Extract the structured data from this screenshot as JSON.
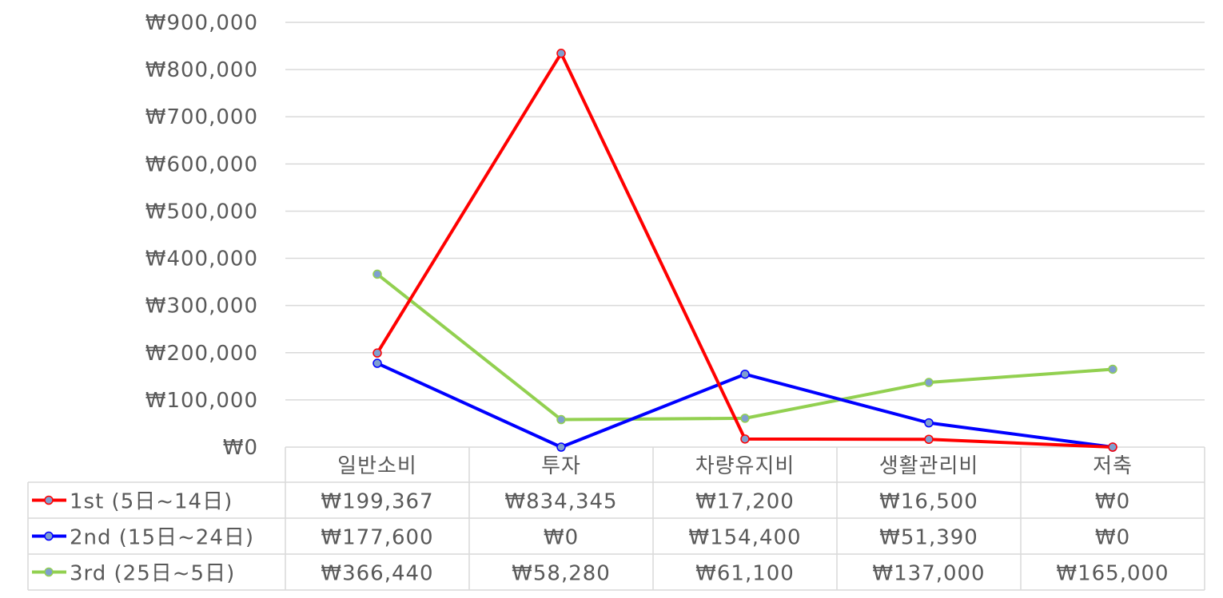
{
  "chart_data": {
    "type": "line",
    "categories": [
      "일반소비",
      "투자",
      "차량유지비",
      "생활관리비",
      "저축"
    ],
    "ylim": [
      0,
      900000
    ],
    "ytick_labels": [
      "₩0",
      "₩100,000",
      "₩200,000",
      "₩300,000",
      "₩400,000",
      "₩500,000",
      "₩600,000",
      "₩700,000",
      "₩800,000",
      "₩900,000"
    ],
    "grid": true,
    "legend": "data-table",
    "series": [
      {
        "name": "1st (5日~14日)",
        "color": "#ff0000",
        "values": [
          199367,
          834345,
          17200,
          16500,
          0
        ],
        "labels": [
          "₩199,367",
          "₩834,345",
          "₩17,200",
          "₩16,500",
          "₩0"
        ]
      },
      {
        "name": "2nd (15日~24日)",
        "color": "#0000ff",
        "values": [
          177600,
          0,
          154400,
          51390,
          0
        ],
        "labels": [
          "₩177,600",
          "₩0",
          "₩154,400",
          "₩51,390",
          "₩0"
        ]
      },
      {
        "name": "3rd (25日~5日)",
        "color": "#92d050",
        "values": [
          366440,
          58280,
          61100,
          137000,
          165000
        ],
        "labels": [
          "₩366,440",
          "₩58,280",
          "₩61,100",
          "₩137,000",
          "₩165,000"
        ]
      }
    ]
  }
}
